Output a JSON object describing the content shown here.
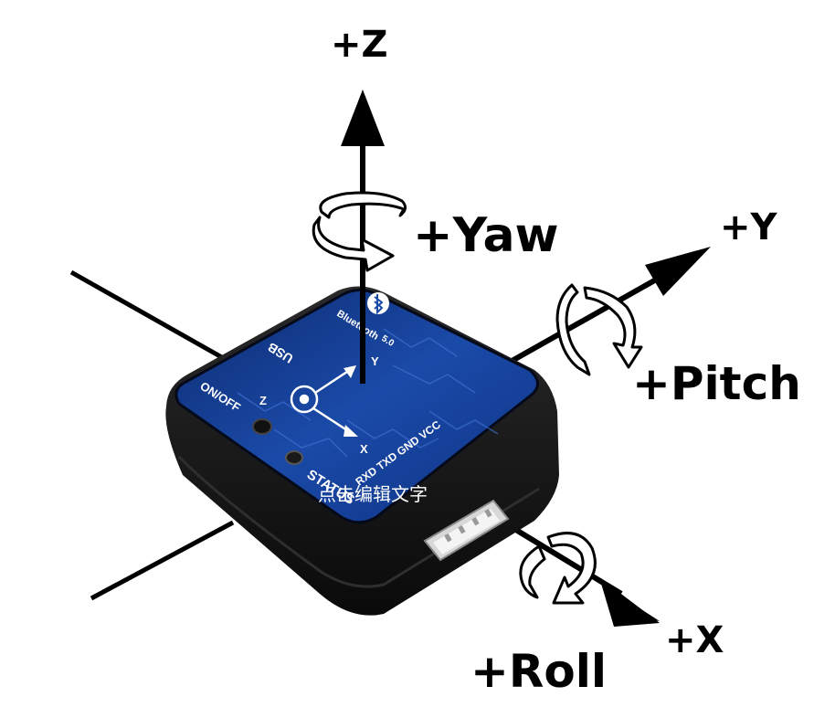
{
  "labels": {
    "z_axis": "+Z",
    "y_axis": "+Y",
    "x_axis": "+X",
    "yaw": "+Yaw",
    "pitch": "+Pitch",
    "roll": "+Roll"
  },
  "board": {
    "bluetooth": "Bluetooth",
    "bluetooth_version": "5.0",
    "usb": "USB",
    "on_off": "ON/OFF",
    "status": "STATUS",
    "pins": "RXD TXD GND VCC",
    "axis_y": "Y",
    "axis_z": "Z",
    "axis_x": "X"
  },
  "overlay_text": "点击编辑文字",
  "colors": {
    "board_blue": "#123a8c",
    "case_black": "#141414",
    "arrow_black": "#000000"
  }
}
